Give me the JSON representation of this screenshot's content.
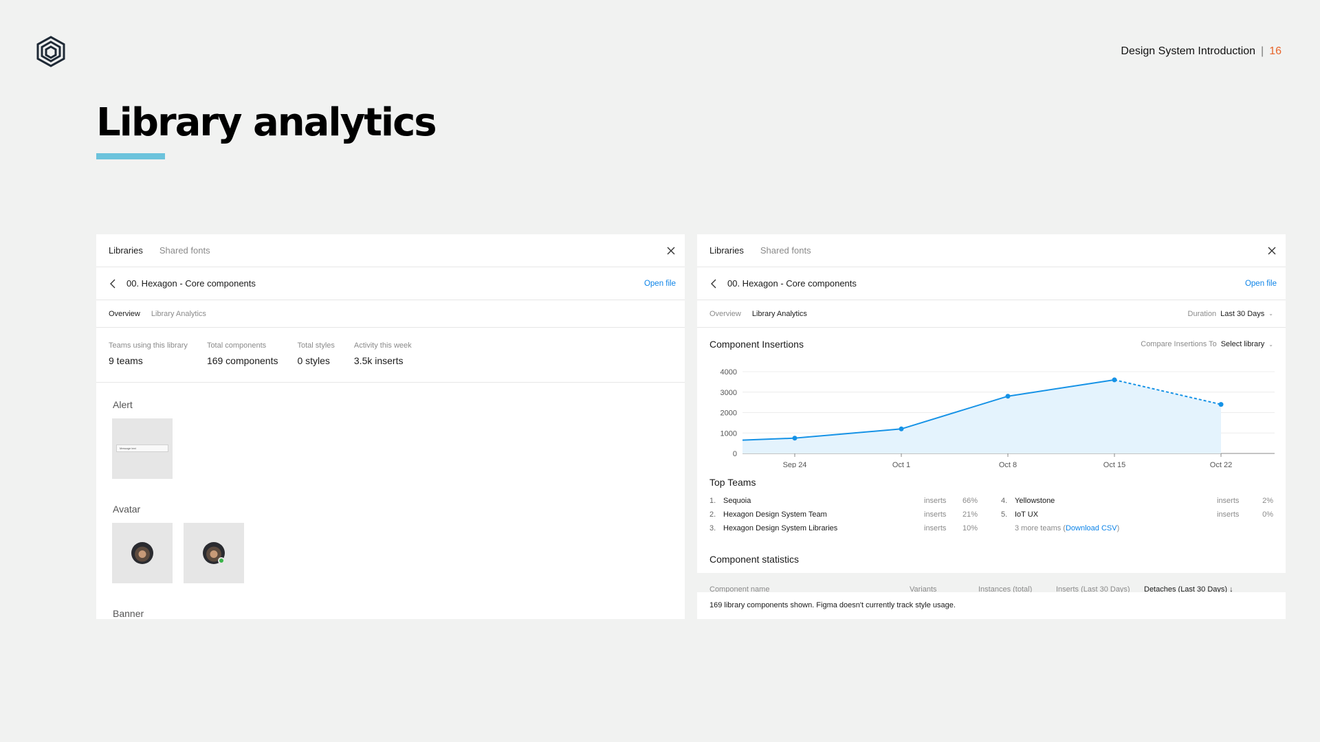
{
  "header": {
    "deck_title": "Design System Introduction",
    "separator": "|",
    "page_number": "16",
    "slide_title": "Library analytics"
  },
  "colors": {
    "accent_underline": "#6cc3dc",
    "page_number": "#e8652b",
    "link": "#0d84e8",
    "chart_line": "#1592e6"
  },
  "left_panel": {
    "tabs": [
      "Libraries",
      "Shared fonts"
    ],
    "file_name": "00. Hexagon - Core components",
    "open_file": "Open file",
    "subtabs": [
      "Overview",
      "Library Analytics"
    ],
    "stats": [
      {
        "label": "Teams using this library",
        "value": "9 teams"
      },
      {
        "label": "Total components",
        "value": "169 components"
      },
      {
        "label": "Total styles",
        "value": "0 styles"
      },
      {
        "label": "Activity this week",
        "value": "3.5k inserts"
      }
    ],
    "sections": [
      {
        "label": "Alert"
      },
      {
        "label": "Avatar"
      },
      {
        "label": "Banner"
      }
    ],
    "alert_mini_text": "Message text"
  },
  "right_panel": {
    "tabs": [
      "Libraries",
      "Shared fonts"
    ],
    "file_name": "00. Hexagon - Core components",
    "open_file": "Open file",
    "subtabs": [
      "Overview",
      "Library Analytics"
    ],
    "duration_label": "Duration",
    "duration_value": "Last 30 Days",
    "component_insertions_title": "Component Insertions",
    "compare_label": "Compare Insertions To",
    "compare_value": "Select library",
    "top_teams_title": "Top Teams",
    "top_teams": [
      {
        "rank": "1.",
        "name": "Sequoia",
        "metric": "inserts",
        "pct": "66%"
      },
      {
        "rank": "2.",
        "name": "Hexagon Design System Team",
        "metric": "inserts",
        "pct": "21%"
      },
      {
        "rank": "3.",
        "name": "Hexagon Design System Libraries",
        "metric": "inserts",
        "pct": "10%"
      },
      {
        "rank": "4.",
        "name": "Yellowstone",
        "metric": "inserts",
        "pct": "2%"
      },
      {
        "rank": "5.",
        "name": "IoT UX",
        "metric": "inserts",
        "pct": "0%"
      }
    ],
    "more_teams_text": "3 more teams (",
    "download_csv": "Download CSV",
    "more_teams_close": ")",
    "component_statistics_title": "Component statistics",
    "table_headers": [
      "Component name",
      "Variants",
      "Instances (total)",
      "Inserts (Last 30 Days)",
      "Detaches (Last 30 Days) ↓"
    ],
    "footer_note": "169 library components shown. Figma doesn't currently track style usage."
  },
  "chart_data": {
    "type": "area",
    "title": "Component Insertions",
    "x_ticks": [
      "Sep 24",
      "Oct 1",
      "Oct 8",
      "Oct 15",
      "Oct 22"
    ],
    "y_ticks": [
      0,
      1000,
      2000,
      3000,
      4000
    ],
    "ylim": [
      0,
      4000
    ],
    "series": [
      {
        "x": [
          "Sep 24",
          "Oct 1",
          "Oct 8",
          "Oct 15",
          "Oct 22"
        ],
        "values": [
          750,
          1200,
          2800,
          3600,
          2400
        ],
        "start_value": 650
      }
    ],
    "last_segment_dashed": true,
    "grid": true
  }
}
